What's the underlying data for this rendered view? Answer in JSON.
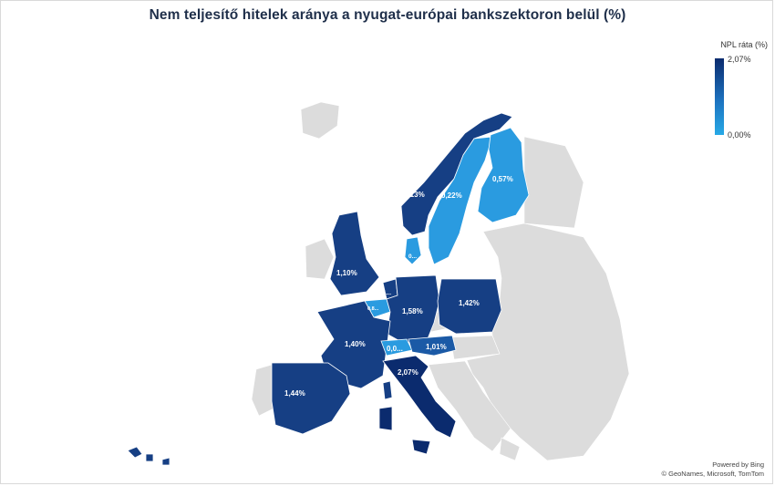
{
  "title": "Nem teljesítő hitelek aránya a nyugat-európai bankszektoron belül (%)",
  "legend": {
    "title": "NPL ráta (%)",
    "max_label": "2,07%",
    "min_label": "0,00%",
    "color_max": "#0b2b6e",
    "color_min": "#27a9e6"
  },
  "credits": {
    "line1": "Powered by Bing",
    "line2": "© GeoNames, Microsoft, TomTom"
  },
  "regions": [
    {
      "id": "italy",
      "label": "2,07%",
      "value": 2.07
    },
    {
      "id": "germany",
      "label": "1,58%",
      "value": 1.58
    },
    {
      "id": "spain",
      "label": "1,44%",
      "value": 1.44
    },
    {
      "id": "poland",
      "label": "1,42%",
      "value": 1.42
    },
    {
      "id": "france",
      "label": "1,40%",
      "value": 1.4
    },
    {
      "id": "norway",
      "label": "1,13%",
      "value": 1.13
    },
    {
      "id": "uk",
      "label": "1,10%",
      "value": 1.1
    },
    {
      "id": "austria",
      "label": "1,01%",
      "value": 1.01
    },
    {
      "id": "finland",
      "label": "0,57%",
      "value": 0.57
    },
    {
      "id": "sweden",
      "label": "0,22%",
      "value": 0.22
    },
    {
      "id": "switzerland",
      "label": "0,0...",
      "value": null
    },
    {
      "id": "denmark",
      "label": "0...",
      "value": null
    },
    {
      "id": "belgium",
      "label": "0,8...",
      "value": null
    },
    {
      "id": "netherlands",
      "label": "1...",
      "value": null
    }
  ],
  "colors": {
    "non_data_land": "#dcdcdc",
    "very_dark": "#0b2b6e",
    "dark": "#163f84",
    "medium_dark": "#1b5aa6",
    "medium": "#1c72bf",
    "light": "#2a9be0",
    "lightest": "#27a9e6"
  }
}
